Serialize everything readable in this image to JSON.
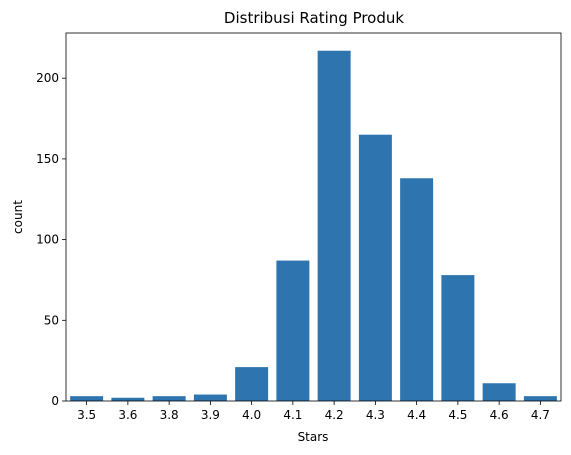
{
  "chart_data": {
    "type": "bar",
    "title": "Distribusi Rating Produk",
    "xlabel": "Stars",
    "ylabel": "count",
    "categories": [
      "3.5",
      "3.6",
      "3.8",
      "3.9",
      "4.0",
      "4.1",
      "4.2",
      "4.3",
      "4.4",
      "4.5",
      "4.6",
      "4.7"
    ],
    "values": [
      3,
      2,
      3,
      4,
      21,
      87,
      217,
      165,
      138,
      78,
      11,
      3
    ],
    "ylim": [
      0,
      228
    ],
    "yticks": [
      0,
      50,
      100,
      150,
      200
    ],
    "bar_color": "#2e75b0",
    "grid": false,
    "legend": "none"
  }
}
